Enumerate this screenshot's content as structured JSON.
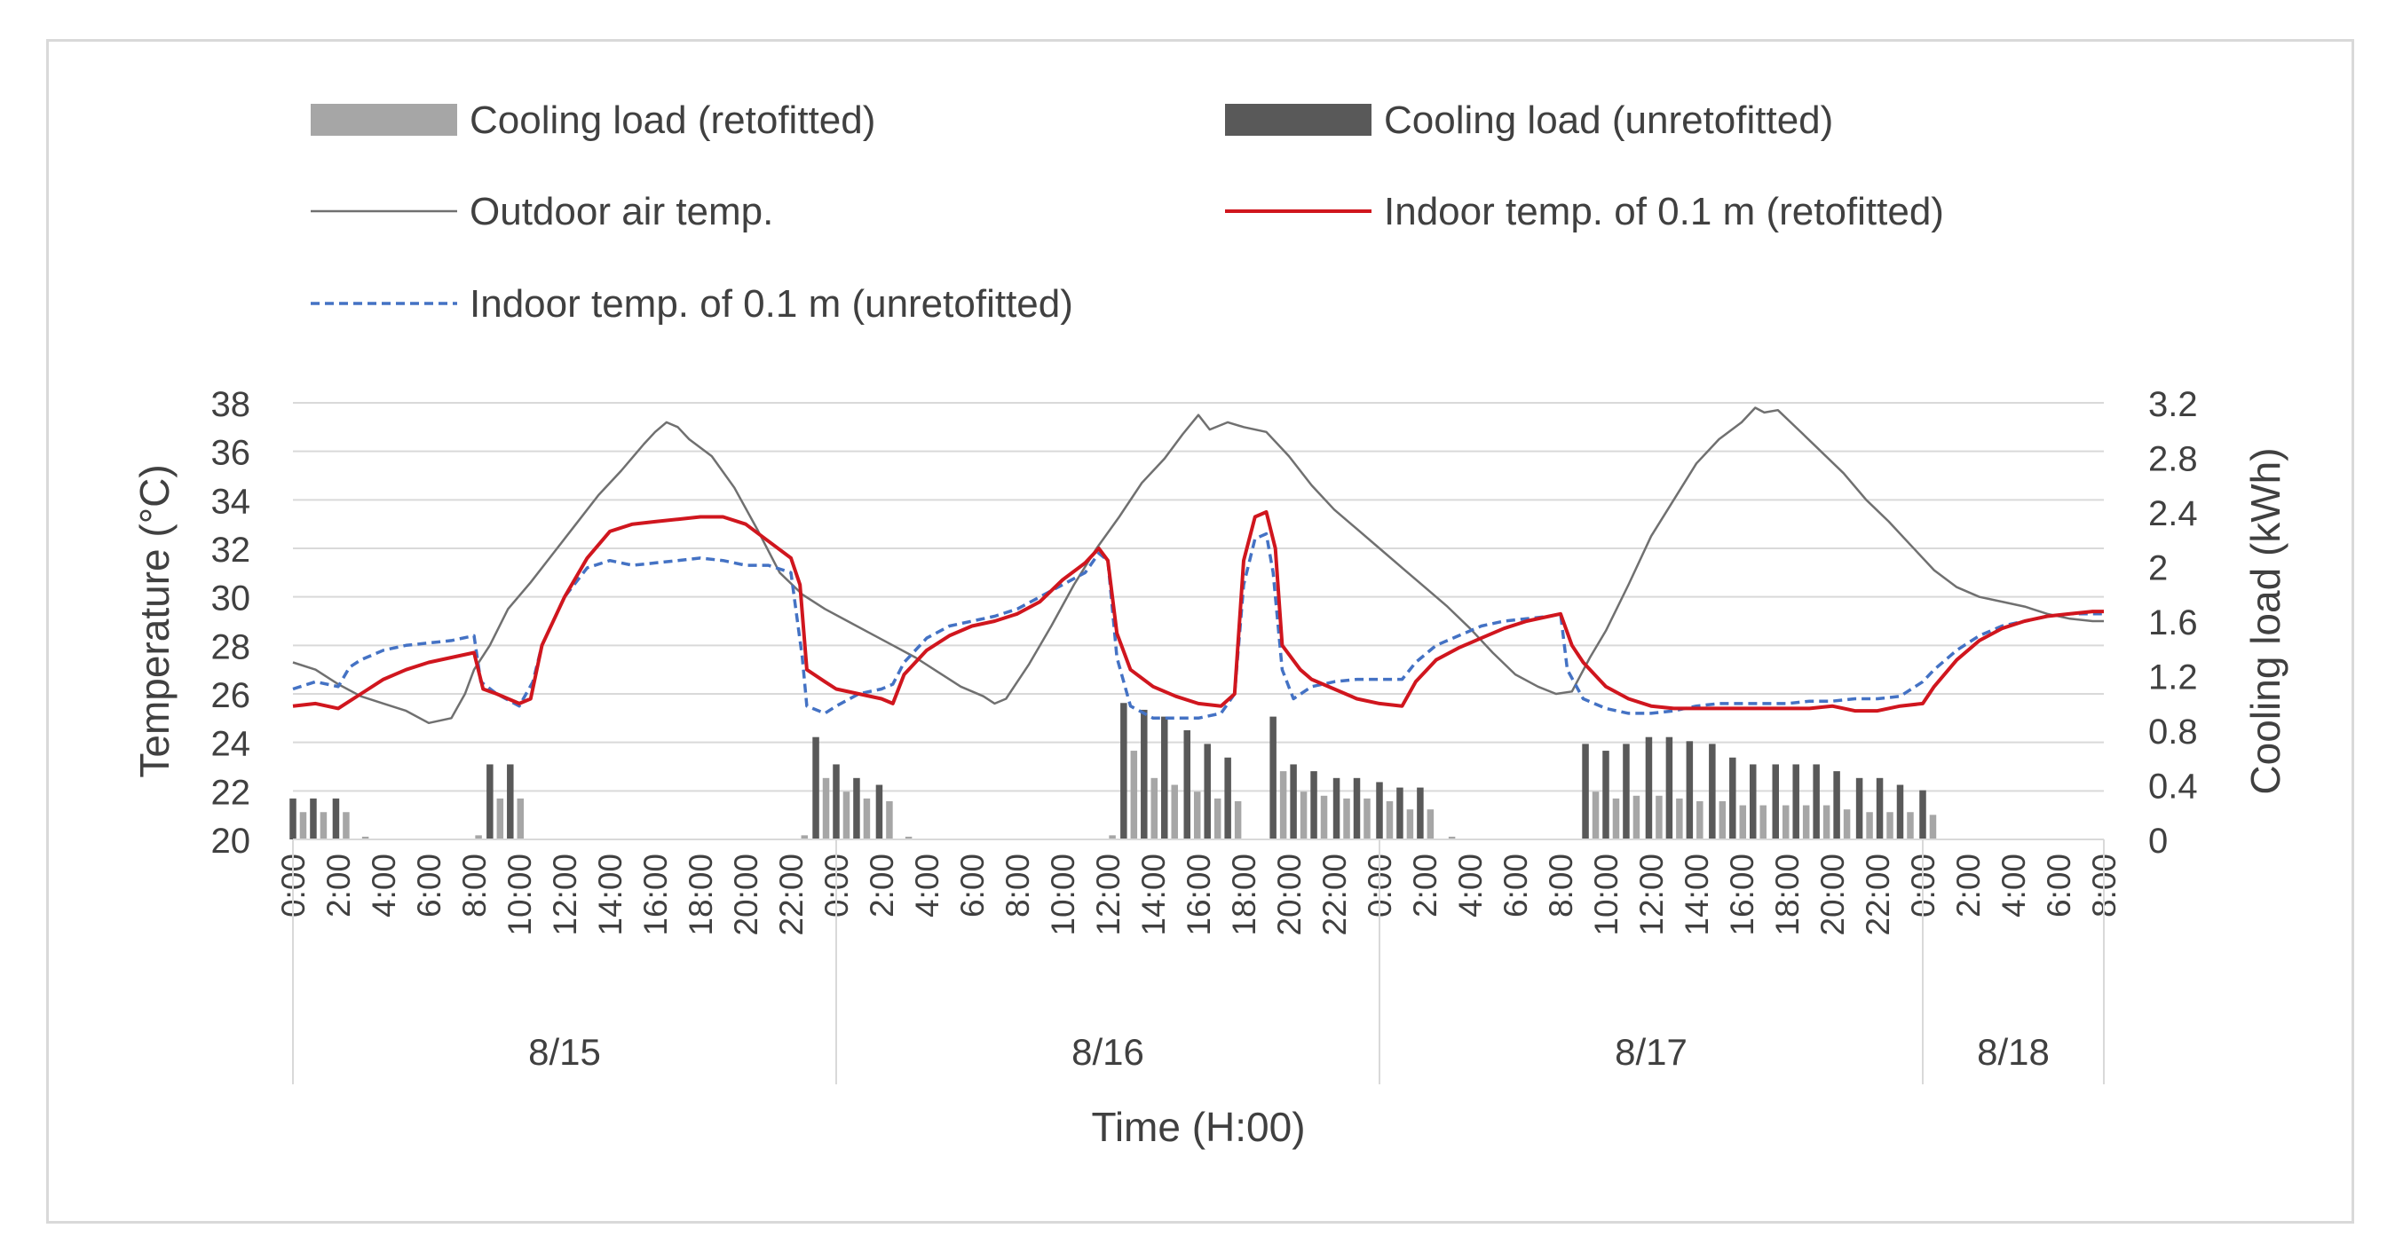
{
  "chart_data": {
    "type": "bar+line",
    "xlabel": "Time (H:00)",
    "ylabel_left": "Temperature (°C)",
    "ylabel_right": "Cooling load (kWh)",
    "ylim_left": [
      20,
      38
    ],
    "yticks_left": [
      20,
      22,
      24,
      26,
      28,
      30,
      32,
      34,
      36,
      38
    ],
    "ylim_right": [
      0,
      3.2
    ],
    "yticks_right": [
      "0",
      "0.4",
      "0.8",
      "1.2",
      "1.6",
      "2",
      "2.4",
      "2.8",
      "3.2"
    ],
    "x_hours_range": [
      0,
      80
    ],
    "x_tick_labels": [
      "0:00",
      "2:00",
      "4:00",
      "6:00",
      "8:00",
      "10:00",
      "12:00",
      "14:00",
      "16:00",
      "18:00",
      "20:00",
      "22:00",
      "0:00",
      "2:00",
      "4:00",
      "6:00",
      "8:00",
      "10:00",
      "12:00",
      "14:00",
      "16:00",
      "18:00",
      "20:00",
      "22:00",
      "0:00",
      "2:00",
      "4:00",
      "6:00",
      "8:00",
      "10:00",
      "12:00",
      "14:00",
      "16:00",
      "18:00",
      "20:00",
      "22:00",
      "0:00",
      "2:00",
      "4:00",
      "6:00",
      "8:00"
    ],
    "date_groups": [
      {
        "label": "8/15",
        "start": 0,
        "end": 24
      },
      {
        "label": "8/16",
        "start": 24,
        "end": 48
      },
      {
        "label": "8/17",
        "start": 48,
        "end": 72
      },
      {
        "label": "8/18",
        "start": 72,
        "end": 80
      }
    ],
    "legend": [
      {
        "key": "cl_retro",
        "label": "Cooling load (retofitted)"
      },
      {
        "key": "cl_unretro",
        "label": "Cooling load  (unretofitted)"
      },
      {
        "key": "outdoor",
        "label": "Outdoor air temp."
      },
      {
        "key": "in_retro",
        "label": "Indoor temp. of 0.1 m  (retofitted)"
      },
      {
        "key": "in_unretro",
        "label": "Indoor temp. of 0.1 m  (unretofitted)"
      }
    ],
    "colors": {
      "cl_retro": "#a6a6a6",
      "cl_unretro": "#595959",
      "outdoor": "#707070",
      "in_retro": "#d0161e",
      "in_unretro": "#4472c4",
      "grid": "#d9d9d9"
    },
    "cooling_unretrofitted": [
      [
        0,
        0.3
      ],
      [
        0.9,
        0.3
      ],
      [
        1.9,
        0.3
      ],
      [
        8.7,
        0.55
      ],
      [
        9.6,
        0.55
      ],
      [
        23.1,
        0.75
      ],
      [
        24,
        0.55
      ],
      [
        24.9,
        0.45
      ],
      [
        25.9,
        0.4
      ],
      [
        36.7,
        1.0
      ],
      [
        37.6,
        0.95
      ],
      [
        38.5,
        0.9
      ],
      [
        39.5,
        0.8
      ],
      [
        40.4,
        0.7
      ],
      [
        41.3,
        0.6
      ],
      [
        43.3,
        0.9
      ],
      [
        44.2,
        0.55
      ],
      [
        45.1,
        0.5
      ],
      [
        46.1,
        0.45
      ],
      [
        47,
        0.45
      ],
      [
        48,
        0.42
      ],
      [
        48.9,
        0.38
      ],
      [
        49.8,
        0.38
      ],
      [
        57.1,
        0.7
      ],
      [
        58,
        0.65
      ],
      [
        58.9,
        0.7
      ],
      [
        59.9,
        0.75
      ],
      [
        60.8,
        0.75
      ],
      [
        61.7,
        0.72
      ],
      [
        62.7,
        0.7
      ],
      [
        63.6,
        0.6
      ],
      [
        64.5,
        0.55
      ],
      [
        65.5,
        0.55
      ],
      [
        66.4,
        0.55
      ],
      [
        67.3,
        0.55
      ],
      [
        68.2,
        0.5
      ],
      [
        69.2,
        0.45
      ],
      [
        70.1,
        0.45
      ],
      [
        71,
        0.4
      ],
      [
        72,
        0.36
      ]
    ],
    "cooling_retrofitted": [
      [
        0.45,
        0.2
      ],
      [
        1.35,
        0.2
      ],
      [
        2.35,
        0.2
      ],
      [
        3.2,
        0.02
      ],
      [
        8.2,
        0.03
      ],
      [
        9.15,
        0.3
      ],
      [
        10.05,
        0.3
      ],
      [
        22.6,
        0.03
      ],
      [
        23.55,
        0.45
      ],
      [
        24.45,
        0.35
      ],
      [
        25.35,
        0.3
      ],
      [
        26.35,
        0.28
      ],
      [
        27.2,
        0.02
      ],
      [
        36.2,
        0.03
      ],
      [
        37.15,
        0.65
      ],
      [
        38.05,
        0.45
      ],
      [
        38.95,
        0.4
      ],
      [
        39.95,
        0.35
      ],
      [
        40.85,
        0.3
      ],
      [
        41.75,
        0.28
      ],
      [
        43.75,
        0.5
      ],
      [
        44.65,
        0.35
      ],
      [
        45.55,
        0.32
      ],
      [
        46.55,
        0.3
      ],
      [
        47.45,
        0.3
      ],
      [
        48.45,
        0.28
      ],
      [
        49.35,
        0.22
      ],
      [
        50.25,
        0.22
      ],
      [
        51.2,
        0.02
      ],
      [
        57.55,
        0.35
      ],
      [
        58.45,
        0.3
      ],
      [
        59.35,
        0.32
      ],
      [
        60.35,
        0.32
      ],
      [
        61.25,
        0.3
      ],
      [
        62.15,
        0.28
      ],
      [
        63.15,
        0.28
      ],
      [
        64.05,
        0.25
      ],
      [
        64.95,
        0.25
      ],
      [
        65.95,
        0.25
      ],
      [
        66.85,
        0.25
      ],
      [
        67.75,
        0.25
      ],
      [
        68.65,
        0.22
      ],
      [
        69.65,
        0.2
      ],
      [
        70.55,
        0.2
      ],
      [
        71.45,
        0.2
      ],
      [
        72.45,
        0.18
      ]
    ],
    "outdoor_temp": [
      [
        0,
        27.3
      ],
      [
        1,
        27.0
      ],
      [
        2,
        26.4
      ],
      [
        3,
        25.9
      ],
      [
        4,
        25.6
      ],
      [
        5,
        25.3
      ],
      [
        6,
        24.8
      ],
      [
        7,
        25.0
      ],
      [
        7.6,
        26.0
      ],
      [
        8,
        27.0
      ],
      [
        8.7,
        28.0
      ],
      [
        9.5,
        29.5
      ],
      [
        10.5,
        30.6
      ],
      [
        11.5,
        31.8
      ],
      [
        12.5,
        33.0
      ],
      [
        13.5,
        34.2
      ],
      [
        14.5,
        35.2
      ],
      [
        15.5,
        36.3
      ],
      [
        16,
        36.8
      ],
      [
        16.5,
        37.2
      ],
      [
        17,
        37.0
      ],
      [
        17.5,
        36.5
      ],
      [
        18.5,
        35.8
      ],
      [
        19.5,
        34.5
      ],
      [
        20.5,
        32.8
      ],
      [
        21.5,
        31.0
      ],
      [
        22.5,
        30.1
      ],
      [
        23.5,
        29.5
      ],
      [
        24.5,
        29.0
      ],
      [
        25.5,
        28.5
      ],
      [
        26.5,
        28.0
      ],
      [
        27.5,
        27.5
      ],
      [
        28.5,
        26.9
      ],
      [
        29.5,
        26.3
      ],
      [
        30.5,
        25.9
      ],
      [
        31,
        25.6
      ],
      [
        31.5,
        25.8
      ],
      [
        32.5,
        27.2
      ],
      [
        33.5,
        28.8
      ],
      [
        34.5,
        30.5
      ],
      [
        35.5,
        32.0
      ],
      [
        36.5,
        33.3
      ],
      [
        37.5,
        34.7
      ],
      [
        38.5,
        35.7
      ],
      [
        39.3,
        36.7
      ],
      [
        40,
        37.5
      ],
      [
        40.5,
        36.9
      ],
      [
        41.3,
        37.2
      ],
      [
        42,
        37.0
      ],
      [
        43,
        36.8
      ],
      [
        44,
        35.8
      ],
      [
        45,
        34.6
      ],
      [
        46,
        33.6
      ],
      [
        47,
        32.8
      ],
      [
        48,
        32.0
      ],
      [
        49,
        31.2
      ],
      [
        50,
        30.4
      ],
      [
        51,
        29.6
      ],
      [
        52,
        28.7
      ],
      [
        53,
        27.7
      ],
      [
        54,
        26.8
      ],
      [
        55,
        26.3
      ],
      [
        55.8,
        26.0
      ],
      [
        56.5,
        26.1
      ],
      [
        57.3,
        27.5
      ],
      [
        58,
        28.6
      ],
      [
        59,
        30.5
      ],
      [
        60,
        32.5
      ],
      [
        61,
        34.0
      ],
      [
        62,
        35.5
      ],
      [
        63,
        36.5
      ],
      [
        64,
        37.2
      ],
      [
        64.6,
        37.8
      ],
      [
        65,
        37.6
      ],
      [
        65.6,
        37.7
      ],
      [
        66.5,
        36.9
      ],
      [
        67.5,
        36.0
      ],
      [
        68.5,
        35.1
      ],
      [
        69.5,
        34.0
      ],
      [
        70.5,
        33.1
      ],
      [
        71.5,
        32.1
      ],
      [
        72.5,
        31.1
      ],
      [
        73.5,
        30.4
      ],
      [
        74.5,
        30.0
      ],
      [
        75.5,
        29.8
      ],
      [
        76.5,
        29.6
      ],
      [
        77.5,
        29.3
      ],
      [
        78.5,
        29.1
      ],
      [
        79.5,
        29.0
      ],
      [
        80,
        29.0
      ]
    ],
    "indoor_retrofitted": [
      [
        0,
        25.5
      ],
      [
        1,
        25.6
      ],
      [
        2,
        25.4
      ],
      [
        3,
        26.0
      ],
      [
        4,
        26.6
      ],
      [
        5,
        27.0
      ],
      [
        6,
        27.3
      ],
      [
        7,
        27.5
      ],
      [
        8,
        27.7
      ],
      [
        8.4,
        26.2
      ],
      [
        9,
        26.0
      ],
      [
        10,
        25.6
      ],
      [
        10.5,
        25.8
      ],
      [
        11,
        28.0
      ],
      [
        12,
        30.0
      ],
      [
        13,
        31.6
      ],
      [
        14,
        32.7
      ],
      [
        15,
        33.0
      ],
      [
        16,
        33.1
      ],
      [
        17,
        33.2
      ],
      [
        18,
        33.3
      ],
      [
        19,
        33.3
      ],
      [
        20,
        33.0
      ],
      [
        21,
        32.3
      ],
      [
        22,
        31.6
      ],
      [
        22.4,
        30.5
      ],
      [
        22.7,
        27.0
      ],
      [
        23.5,
        26.5
      ],
      [
        24,
        26.2
      ],
      [
        25,
        26.0
      ],
      [
        26,
        25.8
      ],
      [
        26.5,
        25.6
      ],
      [
        27,
        26.8
      ],
      [
        28,
        27.8
      ],
      [
        29,
        28.4
      ],
      [
        30,
        28.8
      ],
      [
        31,
        29.0
      ],
      [
        32,
        29.3
      ],
      [
        33,
        29.8
      ],
      [
        34,
        30.7
      ],
      [
        35,
        31.4
      ],
      [
        35.6,
        32.0
      ],
      [
        36,
        31.5
      ],
      [
        36.4,
        28.5
      ],
      [
        37,
        27.0
      ],
      [
        38,
        26.3
      ],
      [
        39,
        25.9
      ],
      [
        40,
        25.6
      ],
      [
        41,
        25.5
      ],
      [
        41.6,
        26.0
      ],
      [
        42,
        31.5
      ],
      [
        42.5,
        33.3
      ],
      [
        43,
        33.5
      ],
      [
        43.4,
        32.0
      ],
      [
        43.7,
        28.0
      ],
      [
        44.5,
        27.0
      ],
      [
        45,
        26.6
      ],
      [
        46,
        26.2
      ],
      [
        47,
        25.8
      ],
      [
        48,
        25.6
      ],
      [
        49,
        25.5
      ],
      [
        49.6,
        26.5
      ],
      [
        50.5,
        27.4
      ],
      [
        51.5,
        27.9
      ],
      [
        52.5,
        28.3
      ],
      [
        53.5,
        28.7
      ],
      [
        54.5,
        29.0
      ],
      [
        55.5,
        29.2
      ],
      [
        56,
        29.3
      ],
      [
        56.5,
        28.0
      ],
      [
        57,
        27.3
      ],
      [
        58,
        26.3
      ],
      [
        59,
        25.8
      ],
      [
        60,
        25.5
      ],
      [
        61,
        25.4
      ],
      [
        62,
        25.4
      ],
      [
        63,
        25.4
      ],
      [
        64,
        25.4
      ],
      [
        65,
        25.4
      ],
      [
        66,
        25.4
      ],
      [
        67,
        25.4
      ],
      [
        68,
        25.5
      ],
      [
        69,
        25.3
      ],
      [
        70,
        25.3
      ],
      [
        71,
        25.5
      ],
      [
        72,
        25.6
      ],
      [
        72.5,
        26.3
      ],
      [
        73.5,
        27.4
      ],
      [
        74.5,
        28.2
      ],
      [
        75.5,
        28.7
      ],
      [
        76.5,
        29.0
      ],
      [
        77.5,
        29.2
      ],
      [
        78.5,
        29.3
      ],
      [
        79.5,
        29.4
      ],
      [
        80,
        29.4
      ]
    ],
    "indoor_unretrofitted": [
      [
        0,
        26.2
      ],
      [
        1,
        26.5
      ],
      [
        2,
        26.3
      ],
      [
        2.5,
        27.1
      ],
      [
        3,
        27.4
      ],
      [
        4,
        27.8
      ],
      [
        5,
        28.0
      ],
      [
        6,
        28.1
      ],
      [
        7,
        28.2
      ],
      [
        8,
        28.4
      ],
      [
        8.3,
        26.5
      ],
      [
        9,
        26.0
      ],
      [
        10,
        25.5
      ],
      [
        10.6,
        26.5
      ],
      [
        11,
        28.0
      ],
      [
        12,
        30.0
      ],
      [
        13,
        31.2
      ],
      [
        14,
        31.5
      ],
      [
        15,
        31.3
      ],
      [
        16,
        31.4
      ],
      [
        17,
        31.5
      ],
      [
        18,
        31.6
      ],
      [
        19,
        31.5
      ],
      [
        20,
        31.3
      ],
      [
        21,
        31.3
      ],
      [
        22,
        31.0
      ],
      [
        22.5,
        27.5
      ],
      [
        22.7,
        25.5
      ],
      [
        23.5,
        25.2
      ],
      [
        24,
        25.5
      ],
      [
        25,
        26.0
      ],
      [
        26,
        26.2
      ],
      [
        26.5,
        26.4
      ],
      [
        27,
        27.3
      ],
      [
        28,
        28.3
      ],
      [
        29,
        28.8
      ],
      [
        30,
        29.0
      ],
      [
        31,
        29.2
      ],
      [
        32,
        29.5
      ],
      [
        33,
        30.0
      ],
      [
        34,
        30.5
      ],
      [
        35,
        31.0
      ],
      [
        35.6,
        31.8
      ],
      [
        36,
        31.5
      ],
      [
        36.4,
        27.5
      ],
      [
        37,
        25.5
      ],
      [
        38,
        25.0
      ],
      [
        39,
        25.0
      ],
      [
        40,
        25.0
      ],
      [
        41,
        25.2
      ],
      [
        41.6,
        26.0
      ],
      [
        42,
        30.5
      ],
      [
        42.5,
        32.4
      ],
      [
        43,
        32.6
      ],
      [
        43.3,
        31.0
      ],
      [
        43.7,
        27.0
      ],
      [
        44.2,
        25.8
      ],
      [
        45,
        26.3
      ],
      [
        46,
        26.5
      ],
      [
        47,
        26.6
      ],
      [
        48,
        26.6
      ],
      [
        49,
        26.6
      ],
      [
        49.6,
        27.3
      ],
      [
        50.5,
        28.0
      ],
      [
        51.5,
        28.4
      ],
      [
        52.5,
        28.8
      ],
      [
        53.5,
        29.0
      ],
      [
        54.5,
        29.1
      ],
      [
        55.5,
        29.2
      ],
      [
        56,
        29.3
      ],
      [
        56.3,
        27.0
      ],
      [
        57,
        25.8
      ],
      [
        58,
        25.4
      ],
      [
        59,
        25.2
      ],
      [
        60,
        25.2
      ],
      [
        61,
        25.3
      ],
      [
        62,
        25.5
      ],
      [
        63,
        25.6
      ],
      [
        64,
        25.6
      ],
      [
        65,
        25.6
      ],
      [
        66,
        25.6
      ],
      [
        67,
        25.7
      ],
      [
        68,
        25.7
      ],
      [
        69,
        25.8
      ],
      [
        70,
        25.8
      ],
      [
        71,
        25.9
      ],
      [
        72,
        26.5
      ],
      [
        72.5,
        27.0
      ],
      [
        73.5,
        27.8
      ],
      [
        74.5,
        28.4
      ],
      [
        75.5,
        28.8
      ],
      [
        76.5,
        29.0
      ],
      [
        77.5,
        29.2
      ],
      [
        78.5,
        29.3
      ],
      [
        79.5,
        29.3
      ],
      [
        80,
        29.3
      ]
    ]
  }
}
